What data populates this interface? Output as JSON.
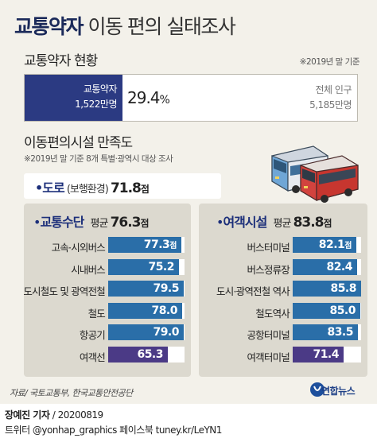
{
  "header": {
    "title_bold": "교통약자",
    "title_rest": " 이동 편의 실태조사"
  },
  "status": {
    "heading": "교통약자 현황",
    "note": "※2019년 말 기준",
    "weak_label": "교통약자",
    "weak_count": "1,522만명",
    "share_value": "29.4",
    "share_unit": "%",
    "share": 29.4,
    "total_label": "전체 인구",
    "total_count": "5,185만명"
  },
  "satisfaction": {
    "heading": "이동편의시설 만족도",
    "note": "※2019년 말 기준 8개 특별·광역시 대상 조사",
    "road": {
      "bullet": "•",
      "label": "도로",
      "sub": " (보행환경) ",
      "value": "71.8",
      "unit": "점"
    }
  },
  "chart_data": [
    {
      "type": "bar",
      "orientation": "horizontal",
      "title": "교통수단",
      "bullet": "•",
      "avg_label": "평균 ",
      "avg_value": "76.3",
      "avg_unit": "점",
      "value_unit": "점",
      "categories": [
        "고속·시외버스",
        "시내버스",
        "도시철도 및 광역전철",
        "철도",
        "항공기",
        "여객선"
      ],
      "values": [
        77.3,
        75.2,
        79.5,
        78.0,
        79.0,
        65.3
      ],
      "labels": [
        "77.3",
        "75.2",
        "79.5",
        "78.0",
        "79.0",
        "65.3"
      ],
      "colors": [
        "#2a6ea8",
        "#2a6ea8",
        "#2a6ea8",
        "#2a6ea8",
        "#2a6ea8",
        "#4b3a86"
      ]
    },
    {
      "type": "bar",
      "orientation": "horizontal",
      "title": "여객시설",
      "bullet": "•",
      "avg_label": "평균 ",
      "avg_value": "83.8",
      "avg_unit": "점",
      "value_unit": "점",
      "categories": [
        "버스터미널",
        "버스정류장",
        "도시·광역전철 역사",
        "철도역사",
        "공항터미널",
        "여객터미널"
      ],
      "values": [
        82.1,
        82.4,
        85.8,
        85.0,
        83.5,
        71.4
      ],
      "labels": [
        "82.1",
        "82.4",
        "85.8",
        "85.0",
        "83.5",
        "71.4"
      ],
      "colors": [
        "#2a6ea8",
        "#2a6ea8",
        "#2a6ea8",
        "#2a6ea8",
        "#2a6ea8",
        "#4b3a86"
      ]
    }
  ],
  "footer": {
    "source": "자료/ 국토교통부, 한국교통안전공단",
    "logo_text": "연합뉴스",
    "author": "장예진 기자",
    "date": " / 20200819",
    "social": "트위터 @yonhap_graphics  페이스북 tuney.kr/LeYN1"
  },
  "colors": {
    "navy": "#2b3a82",
    "bar_blue": "#2a6ea8",
    "bar_purple": "#4b3a86",
    "panel_bg": "#dcd9cf",
    "page_bg": "#f3f1ea"
  }
}
